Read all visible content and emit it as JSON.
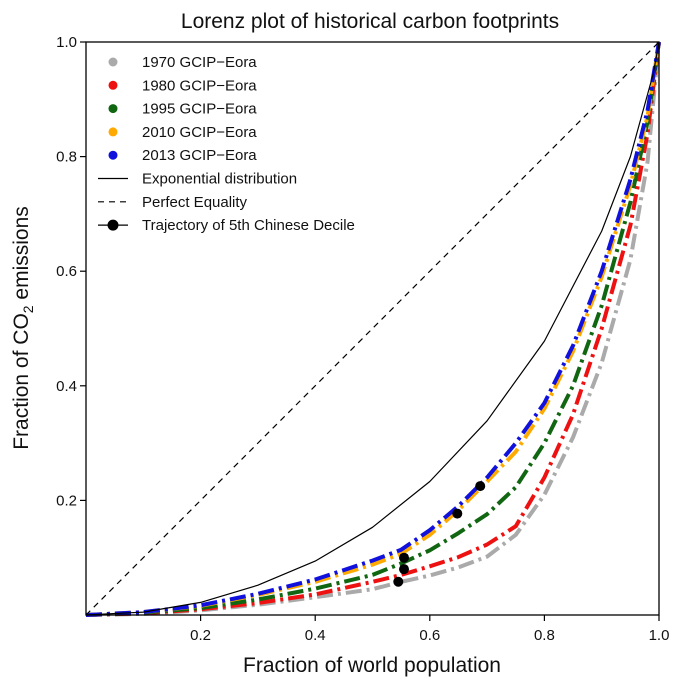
{
  "chart_data": {
    "type": "line",
    "title": "Lorenz plot of historical carbon footprints",
    "xlabel": "Fraction of world population",
    "ylabel_prefix": "Fraction of CO",
    "ylabel_sub": "2",
    "ylabel_suffix": " emissions",
    "xlim": [
      0,
      1
    ],
    "ylim": [
      0,
      1
    ],
    "xticks": [
      {
        "value": 0.2,
        "label": "0.2"
      },
      {
        "value": 0.4,
        "label": "0.4"
      },
      {
        "value": 0.6,
        "label": "0.6"
      },
      {
        "value": 0.8,
        "label": "0.8"
      },
      {
        "value": 1.0,
        "label": "1.0"
      }
    ],
    "yticks": [
      {
        "value": 0.2,
        "label": "0.2"
      },
      {
        "value": 0.4,
        "label": "0.4"
      },
      {
        "value": 0.6,
        "label": "0.6"
      },
      {
        "value": 0.8,
        "label": "0.8"
      },
      {
        "value": 1.0,
        "label": "1.0"
      }
    ],
    "grid": false,
    "legend_position": "top-left",
    "series": [
      {
        "name": "1970 GCIP−Eora",
        "color": "#aaaaaa",
        "style": "dash-dot",
        "x": [
          0,
          0.1,
          0.2,
          0.3,
          0.4,
          0.5,
          0.55,
          0.6,
          0.65,
          0.7,
          0.75,
          0.8,
          0.85,
          0.9,
          0.95,
          0.98,
          1.0
        ],
        "y": [
          0,
          0.002,
          0.008,
          0.018,
          0.031,
          0.045,
          0.058,
          0.069,
          0.083,
          0.102,
          0.14,
          0.21,
          0.31,
          0.44,
          0.62,
          0.79,
          1.0
        ]
      },
      {
        "name": "1980 GCIP−Eora",
        "color": "#ee1111",
        "style": "dash-dot",
        "x": [
          0,
          0.1,
          0.2,
          0.3,
          0.4,
          0.5,
          0.55,
          0.6,
          0.65,
          0.7,
          0.75,
          0.8,
          0.85,
          0.9,
          0.95,
          0.98,
          1.0
        ],
        "y": [
          0,
          0.003,
          0.01,
          0.021,
          0.036,
          0.058,
          0.07,
          0.085,
          0.101,
          0.123,
          0.155,
          0.24,
          0.35,
          0.5,
          0.68,
          0.84,
          1.0
        ]
      },
      {
        "name": "1995 GCIP−Eora",
        "color": "#116611",
        "style": "dash-dot",
        "x": [
          0,
          0.1,
          0.2,
          0.3,
          0.4,
          0.5,
          0.55,
          0.6,
          0.65,
          0.7,
          0.75,
          0.8,
          0.85,
          0.9,
          0.95,
          0.98,
          1.0
        ],
        "y": [
          0,
          0.004,
          0.012,
          0.027,
          0.046,
          0.07,
          0.09,
          0.113,
          0.143,
          0.176,
          0.223,
          0.3,
          0.4,
          0.54,
          0.72,
          0.86,
          1.0
        ]
      },
      {
        "name": "2010 GCIP−Eora",
        "color": "#ffaa00",
        "style": "dash-dot",
        "x": [
          0,
          0.1,
          0.2,
          0.3,
          0.4,
          0.5,
          0.55,
          0.6,
          0.65,
          0.7,
          0.75,
          0.8,
          0.85,
          0.9,
          0.95,
          0.98,
          1.0
        ],
        "y": [
          0,
          0.005,
          0.016,
          0.035,
          0.058,
          0.088,
          0.107,
          0.14,
          0.183,
          0.233,
          0.285,
          0.36,
          0.46,
          0.59,
          0.75,
          0.87,
          1.0
        ]
      },
      {
        "name": "2013 GCIP−Eora",
        "color": "#1111dd",
        "style": "dash-dot",
        "x": [
          0,
          0.1,
          0.2,
          0.3,
          0.4,
          0.5,
          0.55,
          0.6,
          0.65,
          0.7,
          0.75,
          0.8,
          0.85,
          0.9,
          0.95,
          0.98,
          1.0
        ],
        "y": [
          0,
          0.005,
          0.017,
          0.037,
          0.062,
          0.095,
          0.114,
          0.148,
          0.19,
          0.24,
          0.3,
          0.37,
          0.47,
          0.6,
          0.76,
          0.88,
          1.0
        ]
      },
      {
        "name": "Exponential distribution",
        "color": "#000000",
        "style": "solid",
        "x": [
          0,
          0.1,
          0.2,
          0.3,
          0.4,
          0.5,
          0.6,
          0.7,
          0.8,
          0.9,
          0.95,
          0.99,
          1.0
        ],
        "y": [
          0,
          0.005,
          0.022,
          0.052,
          0.094,
          0.153,
          0.233,
          0.339,
          0.478,
          0.67,
          0.8,
          0.945,
          1.0
        ]
      },
      {
        "name": "Perfect Equality",
        "color": "#000000",
        "style": "dashed",
        "x": [
          0,
          1
        ],
        "y": [
          0,
          1
        ]
      }
    ],
    "trajectory": {
      "name": "Trajectory of 5th Chinese Decile",
      "color": "#000000",
      "x": [
        0.545,
        0.555,
        0.555,
        0.648,
        0.688
      ],
      "y": [
        0.058,
        0.08,
        0.1,
        0.177,
        0.225
      ]
    }
  }
}
